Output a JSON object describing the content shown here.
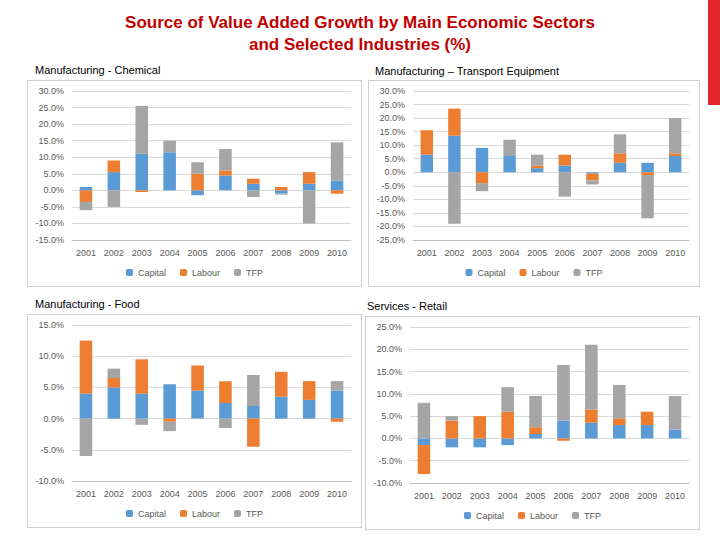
{
  "title": [
    "Source of Value Added Growth  by Main Economic Sectors",
    "and Selected Industries (%)"
  ],
  "chart_data": [
    {
      "type": "bar",
      "title": "Manufacturing - Chemical",
      "categories": [
        "2001",
        "2002",
        "2003",
        "2004",
        "2005",
        "2006",
        "2007",
        "2008",
        "2009",
        "2010"
      ],
      "series": [
        {
          "name": "Capital",
          "color": "#5b9bd5",
          "values": [
            1,
            5.5,
            11,
            11.5,
            -1.5,
            4.5,
            2,
            -1,
            2,
            3
          ]
        },
        {
          "name": "Labour",
          "color": "#ed7d31",
          "values": [
            -3.5,
            3.5,
            -0.5,
            0,
            5,
            1.5,
            1.5,
            1,
            3.5,
            -1
          ]
        },
        {
          "name": "TFP",
          "color": "#a5a5a5",
          "values": [
            -2.5,
            -5,
            14.5,
            3.5,
            3.5,
            6.5,
            -2,
            -0.3,
            -10,
            11.5
          ]
        }
      ],
      "ylim": [
        -15,
        30
      ],
      "yticks": [
        {
          "value": -15,
          "label": "-15.0%"
        },
        {
          "value": -10,
          "label": "-10.0%"
        },
        {
          "value": -5,
          "label": "-5.0%"
        },
        {
          "value": 0,
          "label": "0.0%"
        },
        {
          "value": 5,
          "label": "5.0%"
        },
        {
          "value": 10,
          "label": "10.0%"
        },
        {
          "value": 15,
          "label": "15.0%"
        },
        {
          "value": 20,
          "label": "20.0%"
        },
        {
          "value": 25,
          "label": "25.0%"
        },
        {
          "value": 30,
          "label": "30.0%"
        }
      ],
      "grid": true,
      "stacked": true,
      "legend": "bottom"
    },
    {
      "type": "bar",
      "title": "Manufacturing – Transport Equipment",
      "categories": [
        "2001",
        "2002",
        "2003",
        "2004",
        "2005",
        "2006",
        "2007",
        "2008",
        "2009",
        "2010"
      ],
      "series": [
        {
          "name": "Capital",
          "color": "#5b9bd5",
          "values": [
            6.5,
            13.5,
            9,
            6,
            1.5,
            2.5,
            -0.5,
            3.5,
            3.5,
            6
          ]
        },
        {
          "name": "Labour",
          "color": "#ed7d31",
          "values": [
            9,
            10,
            -4,
            0,
            1,
            4,
            -2.5,
            3.5,
            -1,
            1
          ]
        },
        {
          "name": "TFP",
          "color": "#a5a5a5",
          "values": [
            0,
            -19,
            -3,
            6,
            4,
            -9,
            -1.5,
            7,
            -16,
            13
          ]
        }
      ],
      "ylim": [
        -25,
        30
      ],
      "yticks": [
        {
          "value": -25,
          "label": "-25.0%"
        },
        {
          "value": -20,
          "label": "-20.0%"
        },
        {
          "value": -15,
          "label": "-15.0%"
        },
        {
          "value": -10,
          "label": "-10.0%"
        },
        {
          "value": -5,
          "label": "-5.0%"
        },
        {
          "value": 0,
          "label": "0.0%"
        },
        {
          "value": 5,
          "label": "5.0%"
        },
        {
          "value": 10,
          "label": "10.0%"
        },
        {
          "value": 15,
          "label": "15.0%"
        },
        {
          "value": 20,
          "label": "20.0%"
        },
        {
          "value": 25,
          "label": "25.0%"
        },
        {
          "value": 30,
          "label": "30.0%"
        }
      ],
      "grid": true,
      "stacked": true,
      "legend": "bottom"
    },
    {
      "type": "bar",
      "title": "Manufacturing - Food",
      "categories": [
        "2001",
        "2002",
        "2003",
        "2004",
        "2005",
        "2006",
        "2007",
        "2008",
        "2009",
        "2010"
      ],
      "series": [
        {
          "name": "Capital",
          "color": "#5b9bd5",
          "values": [
            4,
            5,
            4,
            5.5,
            4.5,
            2.5,
            2,
            3.5,
            3,
            4.5
          ]
        },
        {
          "name": "Labour",
          "color": "#ed7d31",
          "values": [
            8.5,
            1.5,
            5.5,
            -0.5,
            4,
            3.5,
            -4.5,
            4,
            3,
            -0.5
          ]
        },
        {
          "name": "TFP",
          "color": "#a5a5a5",
          "values": [
            -6,
            1.5,
            -1,
            -1.5,
            0,
            -1.5,
            5,
            0,
            0,
            1.5
          ]
        }
      ],
      "ylim": [
        -10,
        15
      ],
      "yticks": [
        {
          "value": -10,
          "label": "-10.0%"
        },
        {
          "value": -5,
          "label": "-5.0%"
        },
        {
          "value": 0,
          "label": "0.0%"
        },
        {
          "value": 5,
          "label": "5.0%"
        },
        {
          "value": 10,
          "label": "10.0%"
        },
        {
          "value": 15,
          "label": "15.0%"
        }
      ],
      "grid": true,
      "stacked": true,
      "legend": "bottom"
    },
    {
      "type": "bar",
      "title": "Services - Retail",
      "categories": [
        "2001",
        "2002",
        "2003",
        "2004",
        "2005",
        "2006",
        "2007",
        "2008",
        "2009",
        "2010"
      ],
      "series": [
        {
          "name": "Capital",
          "color": "#5b9bd5",
          "values": [
            -1.5,
            -2,
            -2,
            -1.5,
            1,
            4,
            3.5,
            3,
            3,
            2
          ]
        },
        {
          "name": "Labour",
          "color": "#ed7d31",
          "values": [
            -6.5,
            4,
            5,
            6,
            1.5,
            -0.5,
            3,
            1.5,
            3,
            0
          ]
        },
        {
          "name": "TFP",
          "color": "#a5a5a5",
          "values": [
            8,
            1,
            0,
            5.5,
            7,
            12.5,
            14.5,
            7.5,
            0,
            7.5
          ]
        }
      ],
      "ylim": [
        -10,
        25
      ],
      "yticks": [
        {
          "value": -10,
          "label": "-10.0%"
        },
        {
          "value": -5,
          "label": "-5.0%"
        },
        {
          "value": 0,
          "label": "0.0%"
        },
        {
          "value": 5,
          "label": "5.0%"
        },
        {
          "value": 10,
          "label": "10.0%"
        },
        {
          "value": 15,
          "label": "15.0%"
        },
        {
          "value": 20,
          "label": "20.0%"
        },
        {
          "value": 25,
          "label": "25.0%"
        }
      ],
      "grid": true,
      "stacked": true,
      "legend": "bottom"
    }
  ]
}
